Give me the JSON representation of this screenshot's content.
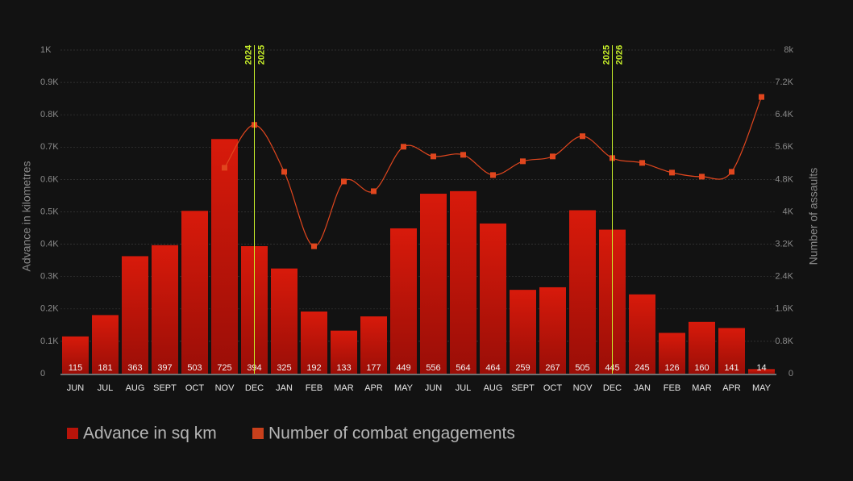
{
  "chart_data": {
    "type": "bar",
    "categories": [
      "JUN",
      "JUL",
      "AUG",
      "SEPT",
      "OCT",
      "NOV",
      "DEC",
      "JAN",
      "FEB",
      "MAR",
      "APR",
      "MAY",
      "JUN",
      "JUL",
      "AUG",
      "SEPT",
      "OCT",
      "NOV",
      "DEC",
      "JAN",
      "FEB",
      "MAR",
      "APR",
      "MAY"
    ],
    "series": [
      {
        "name": "Advance in sq km",
        "color": "#d41a0c",
        "values": [
          115,
          181,
          363,
          397,
          503,
          725,
          394,
          325,
          192,
          133,
          177,
          449,
          556,
          564,
          464,
          259,
          267,
          505,
          445,
          245,
          126,
          160,
          141,
          14
        ]
      },
      {
        "name": "Number of combat engagements",
        "color": "#e0461e",
        "type": "line",
        "axis": "y2",
        "values": [
          null,
          null,
          null,
          null,
          null,
          5090,
          6150,
          4990,
          3150,
          4750,
          4510,
          5610,
          5370,
          5410,
          4910,
          5250,
          5370,
          5870,
          5330,
          5210,
          4970,
          4870,
          4990,
          6840
        ]
      }
    ],
    "ylabel": "Advance in kilometres",
    "y2label": "Number of assaults",
    "ylim": [
      0,
      1000
    ],
    "yticks": [
      0,
      {
        "value": 100,
        "label": "0.1K"
      },
      {
        "value": 200,
        "label": "0.2K"
      },
      {
        "value": 300,
        "label": "0.3K"
      },
      {
        "value": 400,
        "label": "0.4K"
      },
      {
        "value": 500,
        "label": "0.5K"
      },
      {
        "value": 600,
        "label": "0.6K"
      },
      {
        "value": 700,
        "label": "0.7K"
      },
      {
        "value": 800,
        "label": "0.8K"
      },
      {
        "value": 900,
        "label": "0.9K"
      },
      {
        "value": 1000,
        "label": "1K"
      }
    ],
    "y2lim": [
      0,
      8000
    ],
    "y2ticks": [
      0,
      {
        "value": 800,
        "label": "0.8K"
      },
      {
        "value": 1600,
        "label": "1.6K"
      },
      {
        "value": 2400,
        "label": "2.4K"
      },
      {
        "value": 3200,
        "label": "3.2K"
      },
      {
        "value": 4000,
        "label": "4K"
      },
      {
        "value": 4800,
        "label": "4.8K"
      },
      {
        "value": 5600,
        "label": "5.6K"
      },
      {
        "value": 6400,
        "label": "6.4K"
      },
      {
        "value": 7200,
        "label": "7.2K"
      },
      {
        "value": 8000,
        "label": "8k"
      }
    ],
    "grid": true,
    "annotations": [
      {
        "x": 6.5,
        "labels": [
          "2024",
          "2025"
        ],
        "color": "#c8f02a"
      },
      {
        "x": 18.5,
        "labels": [
          "2025",
          "2026"
        ],
        "color": "#c8f02a"
      }
    ]
  }
}
